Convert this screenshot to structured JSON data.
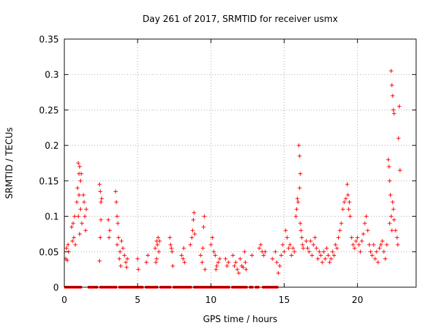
{
  "chart_data": {
    "type": "scatter",
    "title": "Day 261 of 2017, SRMTID for receiver usmx",
    "xlabel": "GPS time / hours",
    "ylabel": "SRMTID / TECUs",
    "xlim": [
      0,
      24
    ],
    "ylim": [
      0,
      0.35
    ],
    "xticks": [
      0,
      5,
      10,
      15,
      20
    ],
    "xtick_labels": [
      "0",
      "5",
      "10",
      "15",
      "20"
    ],
    "yticks": [
      0,
      0.05,
      0.1,
      0.15,
      0.2,
      0.25,
      0.3,
      0.35
    ],
    "ytick_labels": [
      "0",
      "0.05",
      "0.1",
      "0.15",
      "0.2",
      "0.25",
      "0.3",
      "0.35"
    ],
    "grid": true,
    "marker": "plus",
    "color": "#ff0000",
    "zero_coverage": [
      [
        0,
        1.2
      ],
      [
        1.6,
        2.3
      ],
      [
        2.4,
        3.6
      ],
      [
        3.7,
        5.4
      ],
      [
        5.5,
        6.4
      ],
      [
        6.5,
        7.3
      ],
      [
        7.4,
        8.7
      ],
      [
        8.8,
        11.3
      ],
      [
        11.4,
        12.5
      ],
      [
        12.6,
        12.9
      ],
      [
        13.0,
        13.3
      ],
      [
        13.5,
        14.6
      ]
    ],
    "series": [
      {
        "name": "SRMTID",
        "points": [
          [
            0.1,
            0.04
          ],
          [
            0.15,
            0.055
          ],
          [
            0.2,
            0.038
          ],
          [
            0.25,
            0.06
          ],
          [
            0.3,
            0.05
          ],
          [
            0.5,
            0.085
          ],
          [
            0.55,
            0.065
          ],
          [
            0.6,
            0.09
          ],
          [
            0.65,
            0.07
          ],
          [
            0.7,
            0.1
          ],
          [
            0.75,
            0.06
          ],
          [
            0.85,
            0.12
          ],
          [
            0.9,
            0.14
          ],
          [
            0.95,
            0.175
          ],
          [
            1.0,
            0.16
          ],
          [
            1.05,
            0.17
          ],
          [
            1.1,
            0.15
          ],
          [
            1.0,
            0.13
          ],
          [
            0.95,
            0.1
          ],
          [
            1.1,
            0.11
          ],
          [
            1.15,
            0.16
          ],
          [
            1.2,
            0.09
          ],
          [
            1.05,
            0.075
          ],
          [
            1.3,
            0.13
          ],
          [
            1.35,
            0.12
          ],
          [
            1.4,
            0.1
          ],
          [
            1.45,
            0.08
          ],
          [
            1.5,
            0.11
          ],
          [
            2.4,
            0.145
          ],
          [
            2.45,
            0.135
          ],
          [
            2.5,
            0.12
          ],
          [
            2.55,
            0.125
          ],
          [
            2.5,
            0.095
          ],
          [
            2.45,
            0.07
          ],
          [
            2.4,
            0.037
          ],
          [
            3.0,
            0.095
          ],
          [
            3.1,
            0.08
          ],
          [
            3.05,
            0.07
          ],
          [
            3.5,
            0.135
          ],
          [
            3.55,
            0.12
          ],
          [
            3.6,
            0.1
          ],
          [
            3.65,
            0.09
          ],
          [
            3.6,
            0.06
          ],
          [
            3.7,
            0.07
          ],
          [
            3.8,
            0.05
          ],
          [
            3.9,
            0.065
          ],
          [
            4.0,
            0.055
          ],
          [
            3.75,
            0.04
          ],
          [
            3.85,
            0.03
          ],
          [
            4.1,
            0.045
          ],
          [
            4.2,
            0.035
          ],
          [
            4.3,
            0.04
          ],
          [
            4.25,
            0.028
          ],
          [
            5.0,
            0.04
          ],
          [
            5.05,
            0.025
          ],
          [
            5.6,
            0.035
          ],
          [
            5.7,
            0.045
          ],
          [
            6.2,
            0.055
          ],
          [
            6.3,
            0.065
          ],
          [
            6.35,
            0.06
          ],
          [
            6.4,
            0.07
          ],
          [
            6.45,
            0.05
          ],
          [
            6.3,
            0.04
          ],
          [
            6.5,
            0.065
          ],
          [
            6.25,
            0.035
          ],
          [
            7.2,
            0.07
          ],
          [
            7.25,
            0.06
          ],
          [
            7.3,
            0.055
          ],
          [
            7.35,
            0.05
          ],
          [
            7.4,
            0.03
          ],
          [
            8.0,
            0.045
          ],
          [
            8.1,
            0.04
          ],
          [
            8.15,
            0.055
          ],
          [
            8.2,
            0.035
          ],
          [
            8.6,
            0.06
          ],
          [
            8.7,
            0.07
          ],
          [
            8.75,
            0.08
          ],
          [
            8.8,
            0.095
          ],
          [
            8.85,
            0.105
          ],
          [
            8.9,
            0.075
          ],
          [
            9.3,
            0.045
          ],
          [
            9.4,
            0.035
          ],
          [
            9.5,
            0.085
          ],
          [
            9.55,
            0.1
          ],
          [
            9.45,
            0.055
          ],
          [
            9.6,
            0.025
          ],
          [
            10.0,
            0.06
          ],
          [
            10.1,
            0.07
          ],
          [
            10.2,
            0.05
          ],
          [
            10.3,
            0.045
          ],
          [
            10.4,
            0.03
          ],
          [
            10.5,
            0.035
          ],
          [
            10.6,
            0.04
          ],
          [
            10.35,
            0.025
          ],
          [
            11.0,
            0.04
          ],
          [
            11.1,
            0.03
          ],
          [
            11.2,
            0.035
          ],
          [
            11.5,
            0.045
          ],
          [
            11.6,
            0.03
          ],
          [
            11.7,
            0.035
          ],
          [
            11.8,
            0.025
          ],
          [
            11.9,
            0.02
          ],
          [
            12.0,
            0.04
          ],
          [
            12.1,
            0.03
          ],
          [
            12.2,
            0.028
          ],
          [
            12.3,
            0.05
          ],
          [
            12.35,
            0.035
          ],
          [
            12.4,
            0.025
          ],
          [
            12.8,
            0.045
          ],
          [
            13.3,
            0.055
          ],
          [
            13.4,
            0.06
          ],
          [
            13.5,
            0.05
          ],
          [
            13.6,
            0.045
          ],
          [
            13.7,
            0.05
          ],
          [
            14.2,
            0.04
          ],
          [
            14.4,
            0.05
          ],
          [
            14.5,
            0.035
          ],
          [
            14.6,
            0.02
          ],
          [
            14.7,
            0.03
          ],
          [
            14.8,
            0.045
          ],
          [
            14.9,
            0.06
          ],
          [
            15.0,
            0.05
          ],
          [
            15.1,
            0.08
          ],
          [
            15.2,
            0.07
          ],
          [
            15.3,
            0.055
          ],
          [
            15.4,
            0.06
          ],
          [
            15.5,
            0.045
          ],
          [
            15.6,
            0.055
          ],
          [
            15.7,
            0.05
          ],
          [
            15.8,
            0.1
          ],
          [
            15.85,
            0.11
          ],
          [
            15.9,
            0.125
          ],
          [
            15.95,
            0.12
          ],
          [
            16.0,
            0.2
          ],
          [
            16.05,
            0.185
          ],
          [
            16.1,
            0.16
          ],
          [
            16.05,
            0.14
          ],
          [
            16.1,
            0.09
          ],
          [
            16.15,
            0.08
          ],
          [
            16.2,
            0.07
          ],
          [
            16.25,
            0.06
          ],
          [
            16.3,
            0.055
          ],
          [
            16.5,
            0.065
          ],
          [
            16.6,
            0.055
          ],
          [
            16.7,
            0.05
          ],
          [
            16.8,
            0.065
          ],
          [
            16.9,
            0.045
          ],
          [
            17.0,
            0.06
          ],
          [
            17.1,
            0.07
          ],
          [
            17.2,
            0.055
          ],
          [
            17.3,
            0.04
          ],
          [
            17.4,
            0.05
          ],
          [
            17.5,
            0.045
          ],
          [
            17.6,
            0.035
          ],
          [
            17.7,
            0.05
          ],
          [
            17.8,
            0.04
          ],
          [
            17.9,
            0.055
          ],
          [
            18.0,
            0.045
          ],
          [
            18.1,
            0.035
          ],
          [
            18.2,
            0.04
          ],
          [
            18.3,
            0.05
          ],
          [
            18.4,
            0.045
          ],
          [
            18.5,
            0.06
          ],
          [
            18.6,
            0.055
          ],
          [
            18.7,
            0.07
          ],
          [
            18.8,
            0.08
          ],
          [
            18.9,
            0.09
          ],
          [
            19.0,
            0.11
          ],
          [
            19.1,
            0.12
          ],
          [
            19.2,
            0.125
          ],
          [
            19.3,
            0.145
          ],
          [
            19.35,
            0.13
          ],
          [
            19.4,
            0.11
          ],
          [
            19.5,
            0.1
          ],
          [
            19.45,
            0.12
          ],
          [
            19.6,
            0.07
          ],
          [
            19.7,
            0.06
          ],
          [
            19.8,
            0.055
          ],
          [
            19.9,
            0.065
          ],
          [
            20.0,
            0.07
          ],
          [
            20.1,
            0.06
          ],
          [
            20.2,
            0.05
          ],
          [
            20.3,
            0.065
          ],
          [
            20.4,
            0.075
          ],
          [
            20.5,
            0.09
          ],
          [
            20.6,
            0.1
          ],
          [
            20.7,
            0.08
          ],
          [
            20.8,
            0.06
          ],
          [
            20.9,
            0.05
          ],
          [
            21.0,
            0.045
          ],
          [
            21.1,
            0.06
          ],
          [
            21.2,
            0.04
          ],
          [
            21.3,
            0.05
          ],
          [
            21.4,
            0.035
          ],
          [
            21.5,
            0.055
          ],
          [
            21.6,
            0.06
          ],
          [
            21.7,
            0.065
          ],
          [
            21.8,
            0.05
          ],
          [
            21.9,
            0.04
          ],
          [
            22.0,
            0.06
          ],
          [
            22.1,
            0.18
          ],
          [
            22.15,
            0.17
          ],
          [
            22.2,
            0.15
          ],
          [
            22.25,
            0.13
          ],
          [
            22.3,
            0.1
          ],
          [
            22.35,
            0.08
          ],
          [
            22.2,
            0.09
          ],
          [
            22.4,
            0.12
          ],
          [
            22.45,
            0.11
          ],
          [
            22.5,
            0.095
          ],
          [
            22.6,
            0.08
          ],
          [
            22.7,
            0.07
          ],
          [
            22.75,
            0.06
          ],
          [
            22.3,
            0.305
          ],
          [
            22.35,
            0.285
          ],
          [
            22.4,
            0.27
          ],
          [
            22.45,
            0.25
          ],
          [
            22.5,
            0.245
          ],
          [
            22.8,
            0.21
          ],
          [
            22.85,
            0.255
          ],
          [
            22.9,
            0.165
          ]
        ]
      }
    ]
  }
}
